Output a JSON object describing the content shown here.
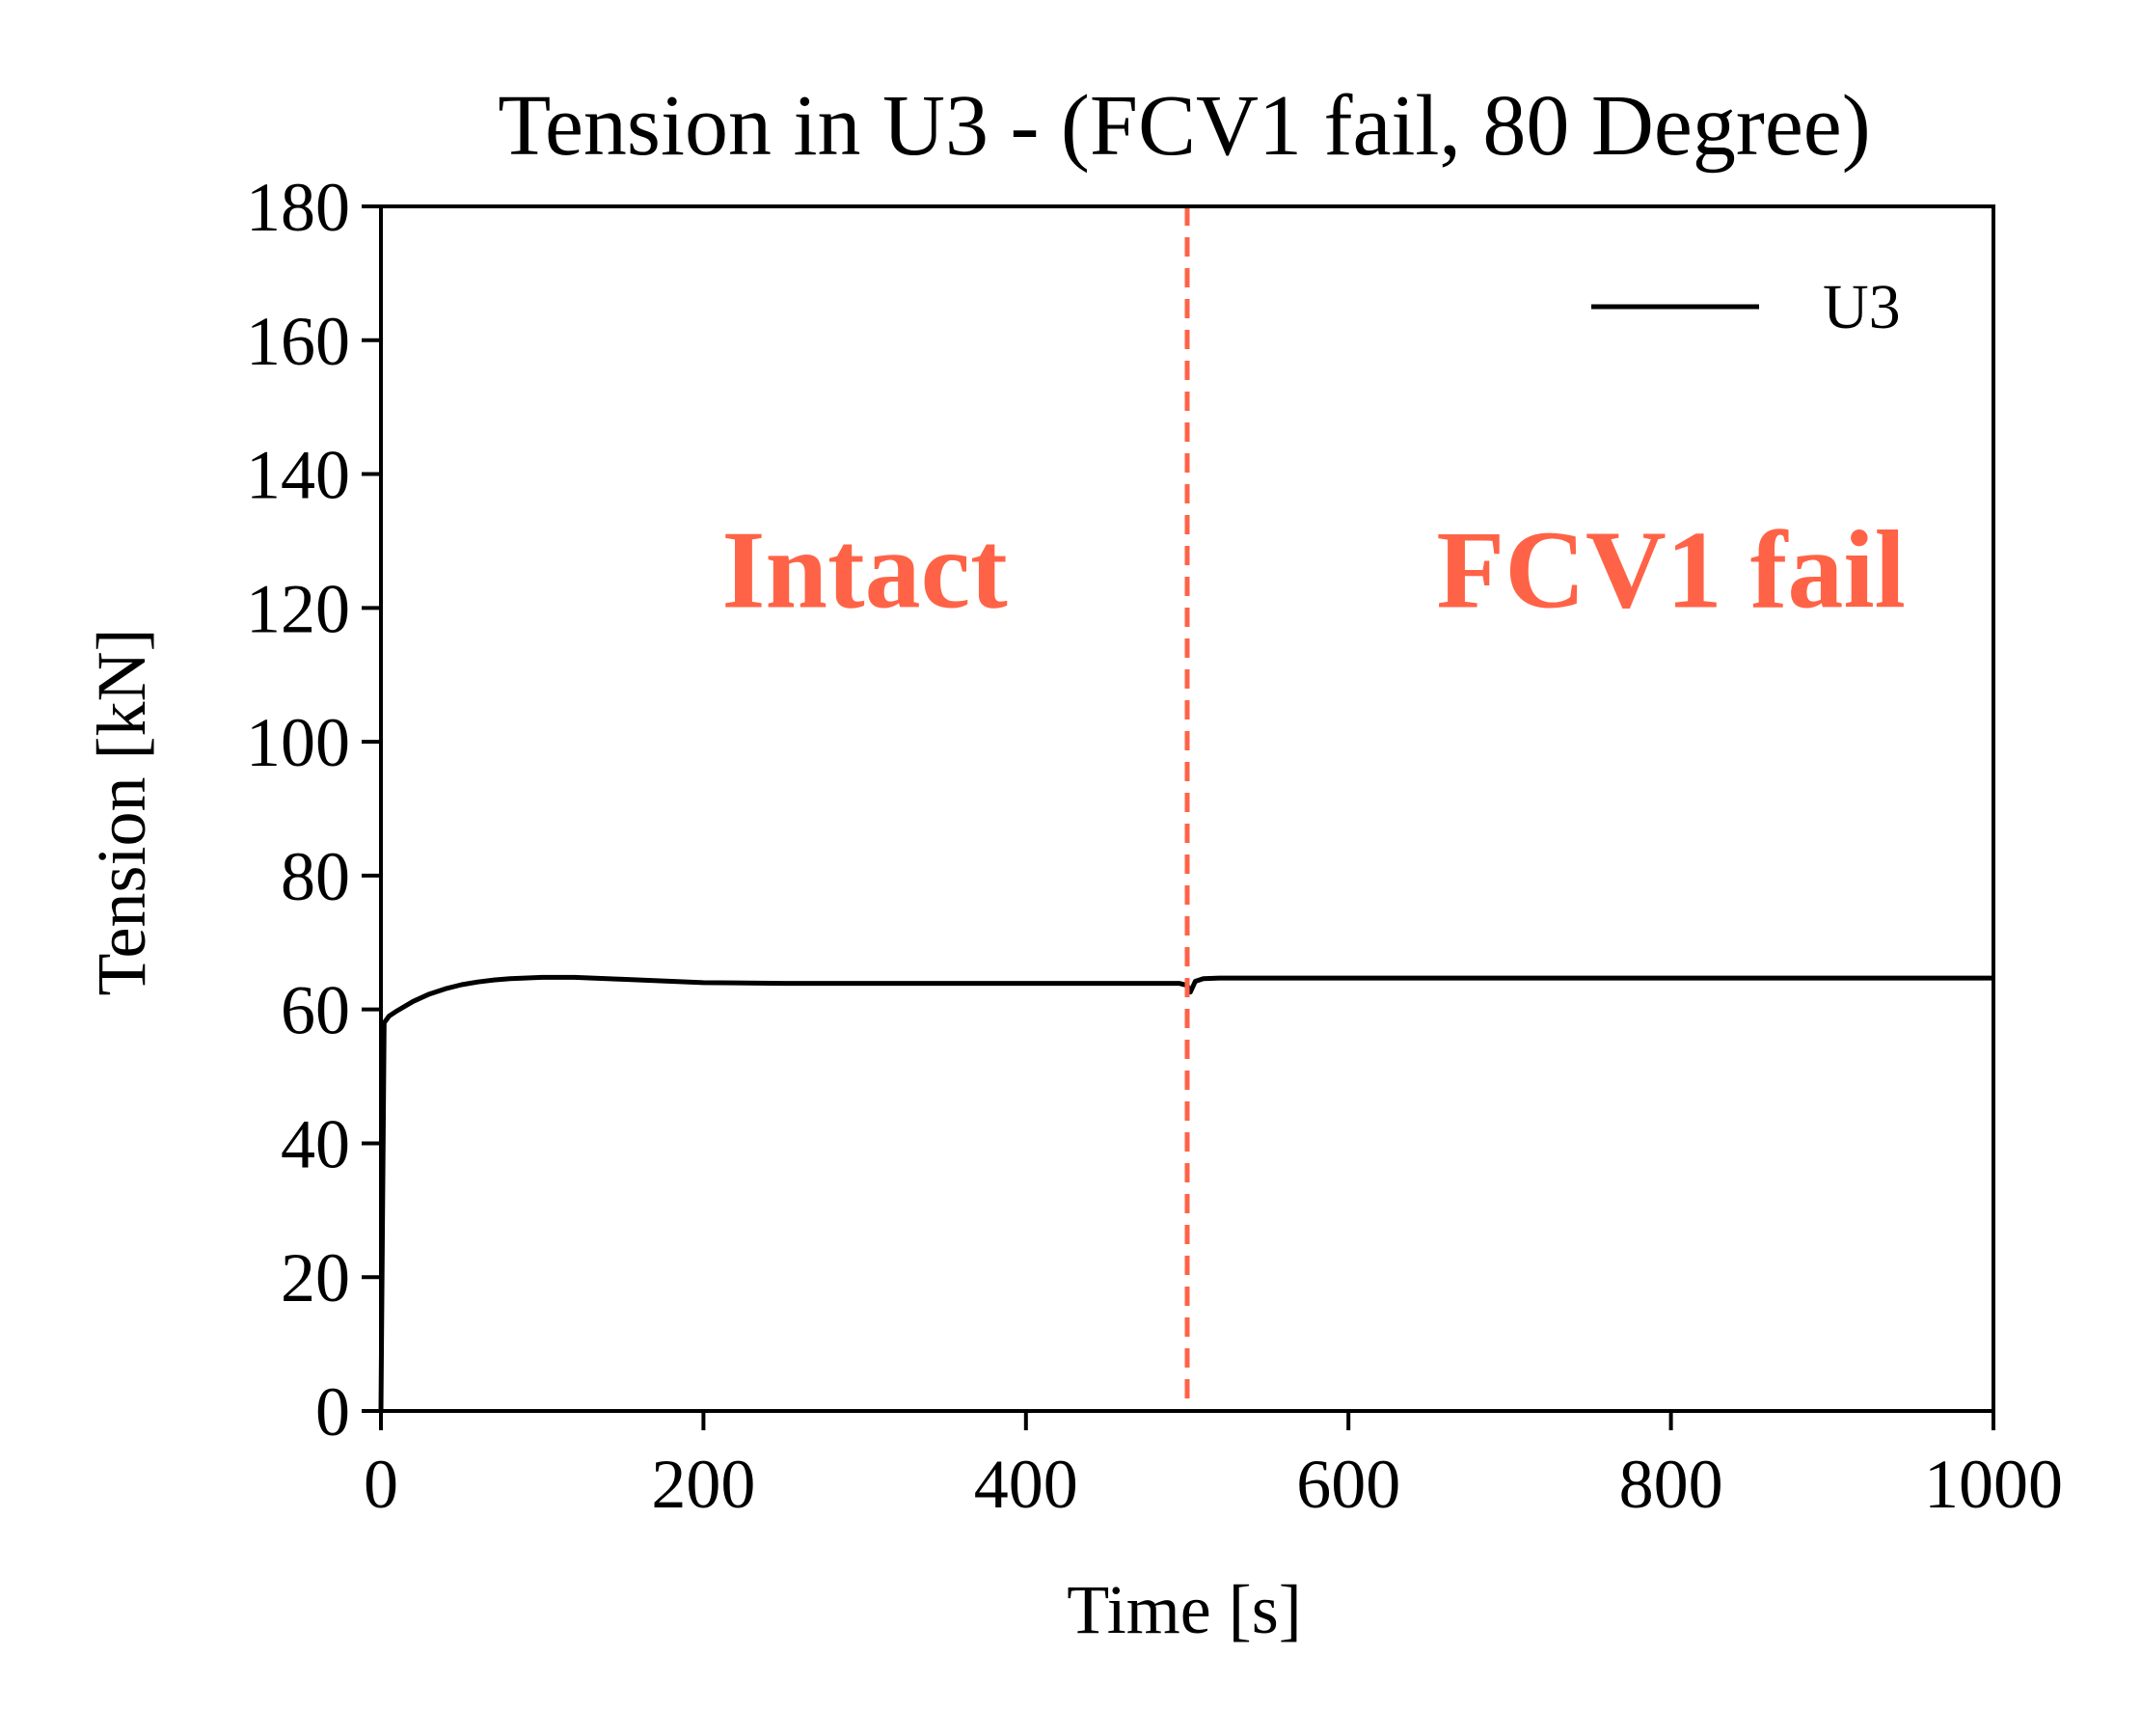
{
  "chart_data": {
    "type": "line",
    "title": "Tension in U3 - (FCV1 fail, 80 Degree)",
    "xlabel": "Time [s]",
    "ylabel": "Tension [kN]",
    "xlim": [
      0,
      1000
    ],
    "ylim": [
      0,
      180
    ],
    "xticks": [
      0,
      200,
      400,
      600,
      800,
      1000
    ],
    "yticks": [
      0,
      20,
      40,
      60,
      80,
      100,
      120,
      140,
      160,
      180
    ],
    "grid": false,
    "legend": {
      "position": "top-right",
      "entries": [
        "U3"
      ]
    },
    "series": [
      {
        "name": "U3",
        "color": "#000000",
        "x": [
          0,
          2,
          5,
          10,
          20,
          30,
          40,
          50,
          60,
          70,
          80,
          100,
          120,
          150,
          200,
          250,
          300,
          350,
          400,
          450,
          495,
          500,
          502,
          505,
          510,
          520,
          600,
          700,
          800,
          900,
          1000
        ],
        "y": [
          0,
          58,
          59,
          59.8,
          61.2,
          62.3,
          63.1,
          63.7,
          64.1,
          64.4,
          64.6,
          64.8,
          64.8,
          64.5,
          64.0,
          63.9,
          63.9,
          63.9,
          63.9,
          63.9,
          63.9,
          63.6,
          62.6,
          64.2,
          64.6,
          64.7,
          64.7,
          64.7,
          64.7,
          64.7,
          64.7
        ]
      }
    ],
    "event_line": {
      "x": 500,
      "color": "#ff6347",
      "style": "dashed"
    },
    "annotations": [
      {
        "text": "Intact",
        "x": 300,
        "y": 125,
        "color": "#ff6347"
      },
      {
        "text": "FCV1 fail",
        "x": 800,
        "y": 125,
        "color": "#ff6347"
      }
    ]
  }
}
